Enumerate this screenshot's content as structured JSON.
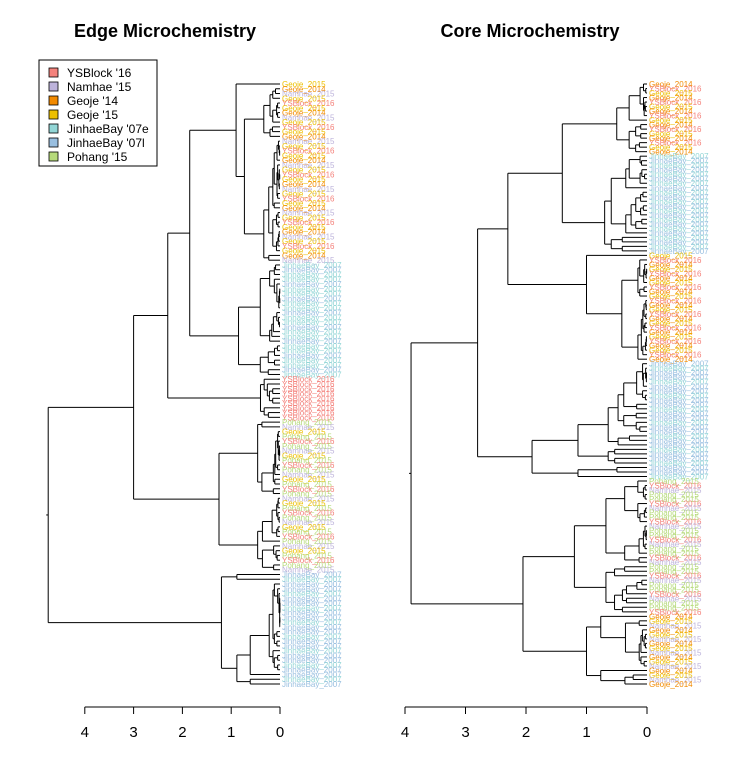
{
  "legend": {
    "placement": "top-left",
    "entries": [
      {
        "label": "YSBlock '16",
        "color": "#F4827C"
      },
      {
        "label": "Namhae '15",
        "color": "#BDB3DB"
      },
      {
        "label": "Geoje '14",
        "color": "#F28A00"
      },
      {
        "label": "Geoje '15",
        "color": "#EDC000"
      },
      {
        "label": "JinhaeBay '07e",
        "color": "#93D6D6"
      },
      {
        "label": "JinhaeBay '07l",
        "color": "#99BFE0"
      },
      {
        "label": "Pohang '15",
        "color": "#B6DA7B"
      }
    ]
  },
  "chart_data": [
    {
      "type": "dendrogram",
      "title": "Edge Microchemistry",
      "axis": {
        "ticks": [
          4,
          3,
          2,
          1,
          0
        ],
        "range": [
          4,
          0
        ],
        "orientation": "horizontal-left"
      },
      "grid": false,
      "leaf_label_examples": [
        "Namhae_2015",
        "Geoje_2014",
        "Geoje_2015",
        "Pohang_2015",
        "YSBlock_2016",
        "JinhaeBay_2007"
      ],
      "clusters": [
        {
          "group": "Geoje/Namhae/YSBlock",
          "join_height": 1.55
        },
        {
          "group": "JinhaeBay '07e",
          "join_height": 0.9
        },
        {
          "group": "YSBlock '16",
          "join_height": 0.4
        },
        {
          "group": "Pohang '15",
          "join_height": 1.3
        },
        {
          "group": "JinhaeBay '07l",
          "join_height": 1.2
        }
      ],
      "root_height": 4.75
    },
    {
      "type": "dendrogram",
      "title": "Core Microchemistry",
      "axis": {
        "ticks": [
          4,
          3,
          2,
          1,
          0
        ],
        "range": [
          4,
          0
        ],
        "orientation": "horizontal-left"
      },
      "grid": false,
      "leaf_label_examples": [
        "Geoje_2014",
        "YSBlock_2016",
        "JinhaeBay_2007",
        "Pohang_2015",
        "Namhae_2015",
        "Geoje_2015"
      ],
      "clusters": [
        {
          "group": "Geoje/YSBlock/JinhaeBay '07e",
          "join_height": 2.3
        },
        {
          "group": "JinhaeBay '07l",
          "join_height": 2.2
        },
        {
          "group": "Pohang/Namhae/Geoje",
          "join_height": 1.8
        }
      ],
      "root_height": 3.9
    }
  ]
}
